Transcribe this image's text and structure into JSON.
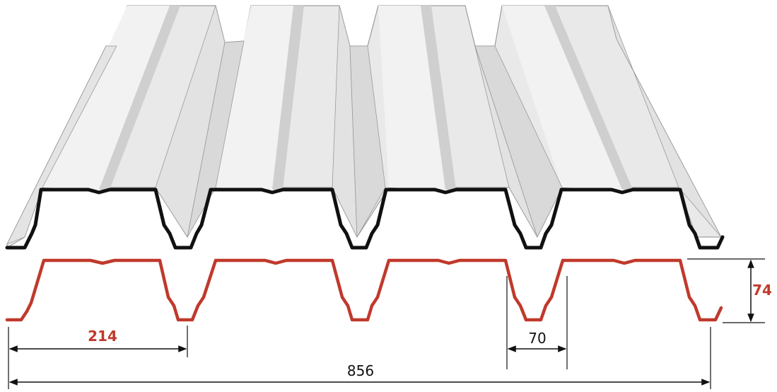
{
  "dimensions": {
    "rib_pitch": "214",
    "total_width": "856",
    "valley_width": "70",
    "profile_height": "74"
  },
  "colors": {
    "sheet_light": "#efefef",
    "sheet_mid": "#dddddd",
    "sheet_dark": "#c9c9c9",
    "edge_line": "#8a8a8a",
    "section_black": "#111111",
    "profile_red": "#c0392b",
    "dimension_line": "#111111"
  }
}
